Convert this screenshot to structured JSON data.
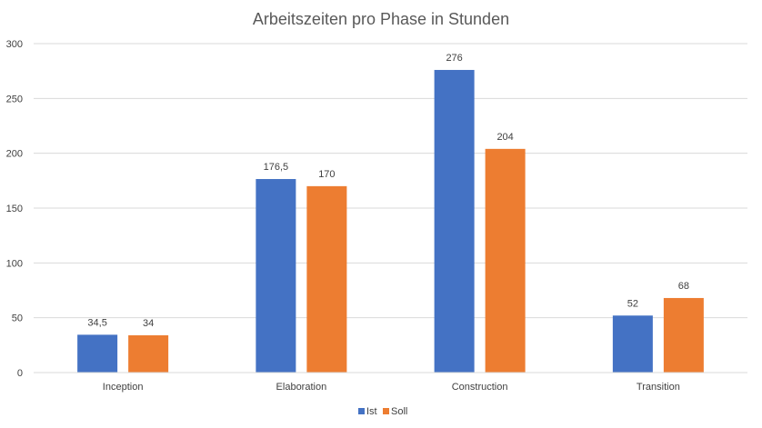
{
  "chart_data": {
    "type": "bar",
    "title": "Arbeitszeiten pro Phase in Stunden",
    "categories": [
      "Inception",
      "Elaboration",
      "Construction",
      "Transition"
    ],
    "series": [
      {
        "name": "Ist",
        "values": [
          34.5,
          176.5,
          276,
          52
        ],
        "labels": [
          "34,5",
          "176,5",
          "276",
          "52"
        ],
        "color": "#4472C4"
      },
      {
        "name": "Soll",
        "values": [
          34,
          170,
          204,
          68
        ],
        "labels": [
          "34",
          "170",
          "204",
          "68"
        ],
        "color": "#ED7D31"
      }
    ],
    "ylim": [
      0,
      300
    ],
    "yticks": [
      0,
      50,
      100,
      150,
      200,
      250,
      300
    ],
    "grid": true,
    "legend": "bottom"
  }
}
